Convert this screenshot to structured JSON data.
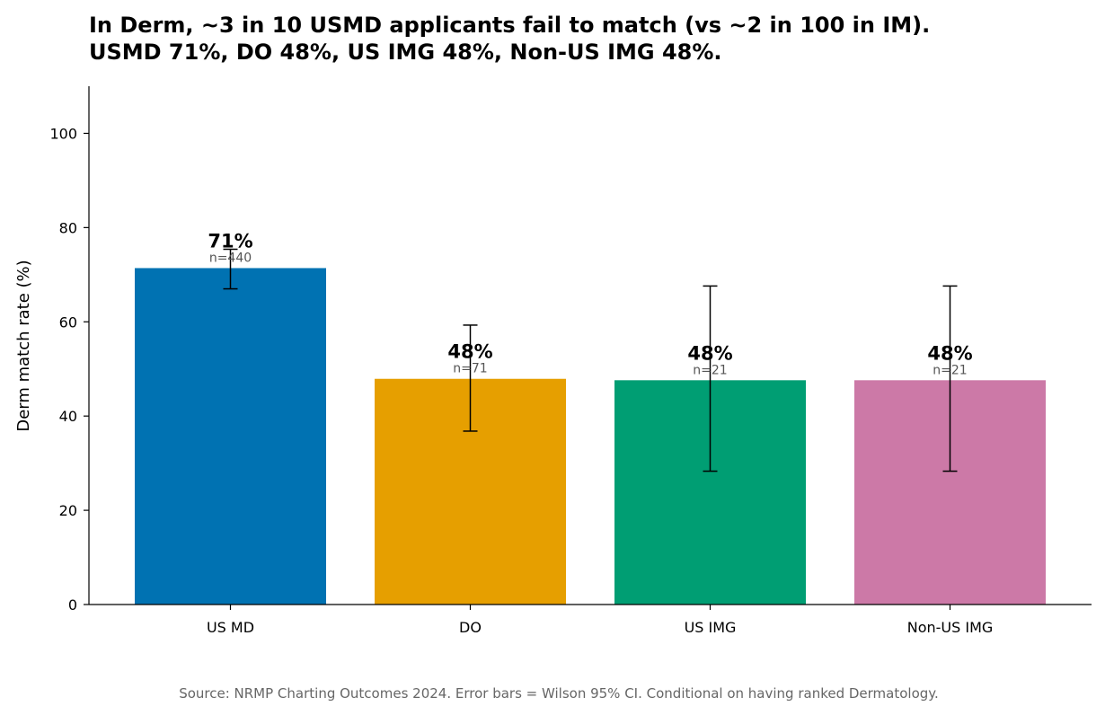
{
  "chart_data": {
    "type": "bar",
    "title_lines": [
      "In Derm, ~3 in 10 USMD applicants fail to match (vs ~2 in 100 in IM).",
      "USMD 71%, DO 48%, US IMG 48%, Non-US IMG 48%."
    ],
    "xlabel": "",
    "ylabel": "Derm match rate (%)",
    "ylim": [
      0,
      110
    ],
    "yticks": [
      0,
      20,
      40,
      60,
      80,
      100
    ],
    "categories": [
      "US MD",
      "DO",
      "US IMG",
      "Non-US IMG"
    ],
    "values": [
      71.4,
      47.9,
      47.6,
      47.6
    ],
    "value_labels": [
      "71%",
      "48%",
      "48%",
      "48%"
    ],
    "n_labels": [
      "n=440",
      "n=71",
      "n=21",
      "n=21"
    ],
    "ci_lower": [
      67.0,
      36.8,
      28.3,
      28.3
    ],
    "ci_upper": [
      75.4,
      59.3,
      67.6,
      67.6
    ],
    "colors": [
      "#0072B2",
      "#E69F00",
      "#009E73",
      "#CC79A7"
    ],
    "source": "Source: NRMP Charting Outcomes 2024. Error bars = Wilson 95% CI. Conditional on having ranked Dermatology."
  }
}
